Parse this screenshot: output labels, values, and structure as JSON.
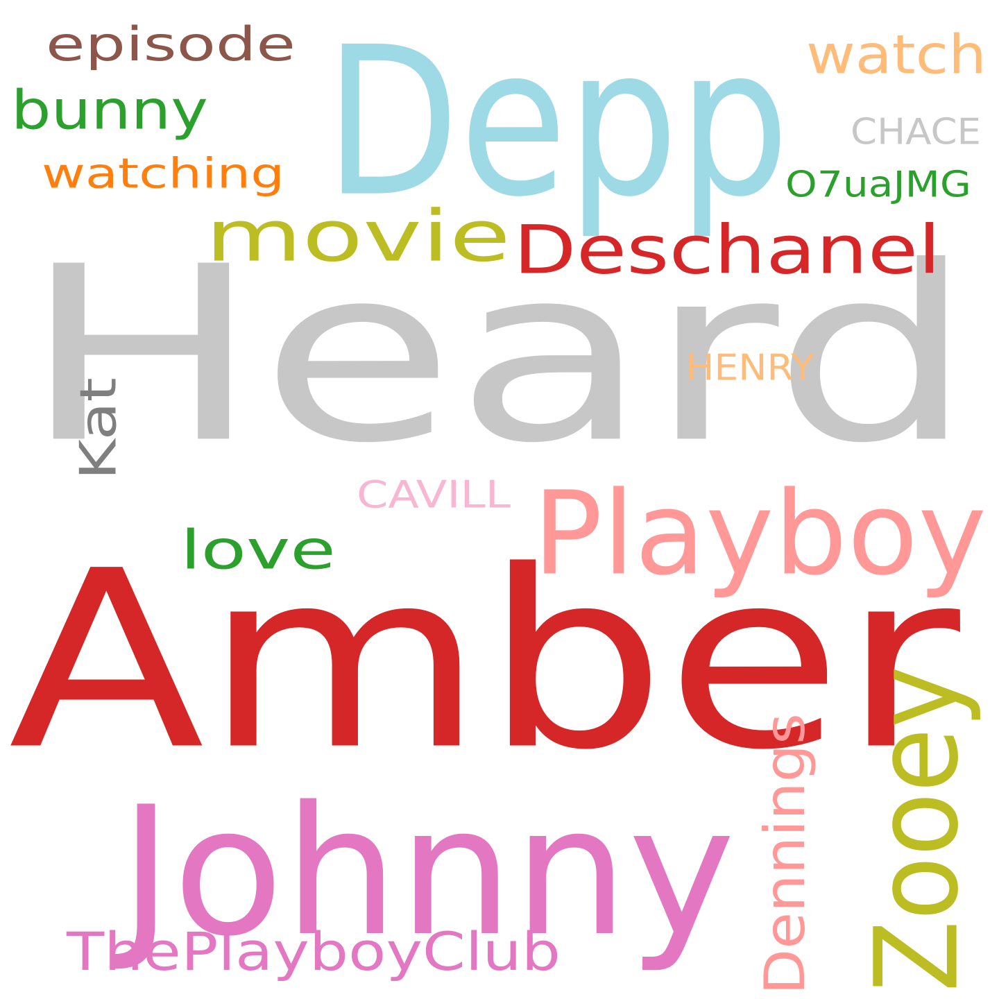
{
  "background": "#ffffff",
  "words": [
    {
      "id": "heard",
      "text": "Heard",
      "color": "#c7c7c7"
    },
    {
      "id": "amber",
      "text": "Amber",
      "color": "#d62728"
    },
    {
      "id": "depp",
      "text": "Depp",
      "color": "#9edae5"
    },
    {
      "id": "johnny",
      "text": "Johnny",
      "color": "#e377c2"
    },
    {
      "id": "playboy",
      "text": "Playboy",
      "color": "#ff9896"
    },
    {
      "id": "deschanel",
      "text": "Deschanel",
      "color": "#d62728"
    },
    {
      "id": "zooey",
      "text": "Zooey",
      "color": "#bcbd22"
    },
    {
      "id": "movie",
      "text": "movie",
      "color": "#bcbd22"
    },
    {
      "id": "dennings",
      "text": "Dennings",
      "color": "#ff9896"
    },
    {
      "id": "theplayboyclub",
      "text": "ThePlayboyClub",
      "color": "#e377c2"
    },
    {
      "id": "bunny",
      "text": "bunny",
      "color": "#2ca02c"
    },
    {
      "id": "watch",
      "text": "watch",
      "color": "#ffbb78"
    },
    {
      "id": "episode",
      "text": "episode",
      "color": "#8c564b"
    },
    {
      "id": "love",
      "text": "love",
      "color": "#2ca02c"
    },
    {
      "id": "kat",
      "text": "Kat",
      "color": "#7f7f7f"
    },
    {
      "id": "watching",
      "text": "watching",
      "color": "#ff7f0e"
    },
    {
      "id": "o7uajmg",
      "text": "O7uaJMG",
      "color": "#2ca02c"
    },
    {
      "id": "chace",
      "text": "CHACE",
      "color": "#c7c7c7"
    },
    {
      "id": "henry",
      "text": "HENRY",
      "color": "#ffbb78"
    },
    {
      "id": "cavill",
      "text": "CAVILL",
      "color": "#f7b6d2"
    }
  ]
}
